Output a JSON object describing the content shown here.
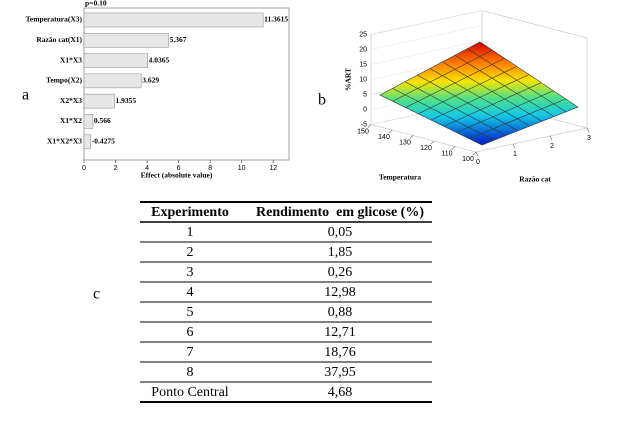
{
  "labels": [
    "a",
    "b",
    "c"
  ],
  "chart_data": [
    {
      "type": "pareto",
      "annotation": "p=0.10",
      "categories": [
        "Temperatura(X3)",
        "Razão cat(X1)",
        "X1*X3",
        "Tempo(X2)",
        "X2*X3",
        "X1*X2",
        "X1*X2*X3"
      ],
      "values": [
        11.3615,
        5.367,
        4.0365,
        3.629,
        1.9355,
        0.566,
        -0.4275
      ],
      "xlabel": "Effect (absolute value)",
      "xlim": [
        0,
        13
      ],
      "xticks": [
        0,
        2,
        4,
        6,
        8,
        10,
        12
      ],
      "color": "#e6e6e6"
    },
    {
      "type": "surface",
      "xlabel": "Razão cat",
      "ylabel": "Temperatura",
      "zlabel": "%ART",
      "xlim": [
        0,
        3
      ],
      "xticks": [
        0,
        1,
        2,
        3
      ],
      "ylim": [
        100,
        150
      ],
      "yticks": [
        100,
        110,
        120,
        130,
        140,
        150
      ],
      "zlim": [
        -5,
        25
      ],
      "zticks": [
        -5,
        0,
        5,
        10,
        15,
        20,
        25
      ]
    }
  ],
  "table": {
    "header": [
      "Experimento",
      "Rendimento  em glicose (%)"
    ],
    "rows": [
      [
        "1",
        "0,05"
      ],
      [
        "2",
        "1,85"
      ],
      [
        "3",
        "0,26"
      ],
      [
        "4",
        "12,98"
      ],
      [
        "5",
        "0,88"
      ],
      [
        "6",
        "12,71"
      ],
      [
        "7",
        "18,76"
      ],
      [
        "8",
        "37,95"
      ],
      [
        "Ponto Central",
        "4,68"
      ]
    ]
  }
}
